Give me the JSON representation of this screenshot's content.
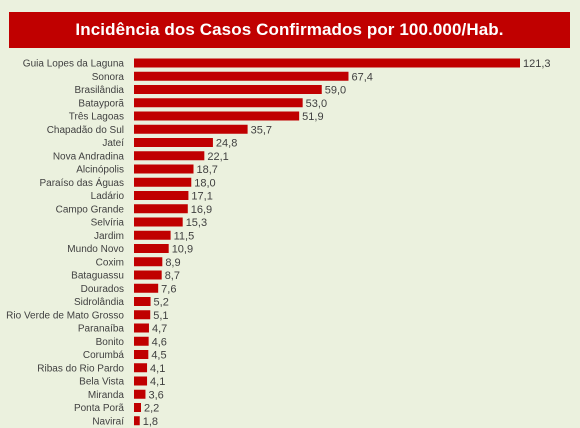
{
  "title": "Incidência dos Casos Confirmados por 100.000/Hab.",
  "colors": {
    "bar": "#c00000",
    "title_bg": "#c00000",
    "background": "#ebf1de"
  },
  "chart_data": {
    "type": "bar",
    "orientation": "horizontal",
    "title": "Incidência dos Casos Confirmados por 100.000/Hab.",
    "xlabel": "",
    "ylabel": "",
    "grid": false,
    "categories": [
      "Guia Lopes da Laguna",
      "Sonora",
      "Brasilândia",
      "Batayporã",
      "Três Lagoas",
      "Chapadão do Sul",
      "Jateí",
      "Nova Andradina",
      "Alcinópolis",
      "Paraíso das Águas",
      "Ladário",
      "Campo Grande",
      "Selvíria",
      "Jardim",
      "Mundo Novo",
      "Coxim",
      "Bataguassu",
      "Dourados",
      "Sidrolândia",
      "Rio Verde de Mato Grosso",
      "Paranaíba",
      "Bonito",
      "Corumbá",
      "Ribas do Rio Pardo",
      "Bela Vista",
      "Miranda",
      "Ponta Porã",
      "Naviraí"
    ],
    "values": [
      121.3,
      67.4,
      59.0,
      53.0,
      51.9,
      35.7,
      24.8,
      22.1,
      18.7,
      18.0,
      17.1,
      16.9,
      15.3,
      11.5,
      10.9,
      8.9,
      8.7,
      7.6,
      5.2,
      5.1,
      4.7,
      4.6,
      4.5,
      4.1,
      4.1,
      3.6,
      2.2,
      1.8
    ],
    "labels": [
      "121,3",
      "67,4",
      "59,0",
      "53,0",
      "51,9",
      "35,7",
      "24,8",
      "22,1",
      "18,7",
      "18,0",
      "17,1",
      "16,9",
      "15,3",
      "11,5",
      "10,9",
      "8,9",
      "8,7",
      "7,6",
      "5,2",
      "5,1",
      "4,7",
      "4,6",
      "4,5",
      "4,1",
      "4,1",
      "3,6",
      "2,2",
      "1,8"
    ]
  }
}
